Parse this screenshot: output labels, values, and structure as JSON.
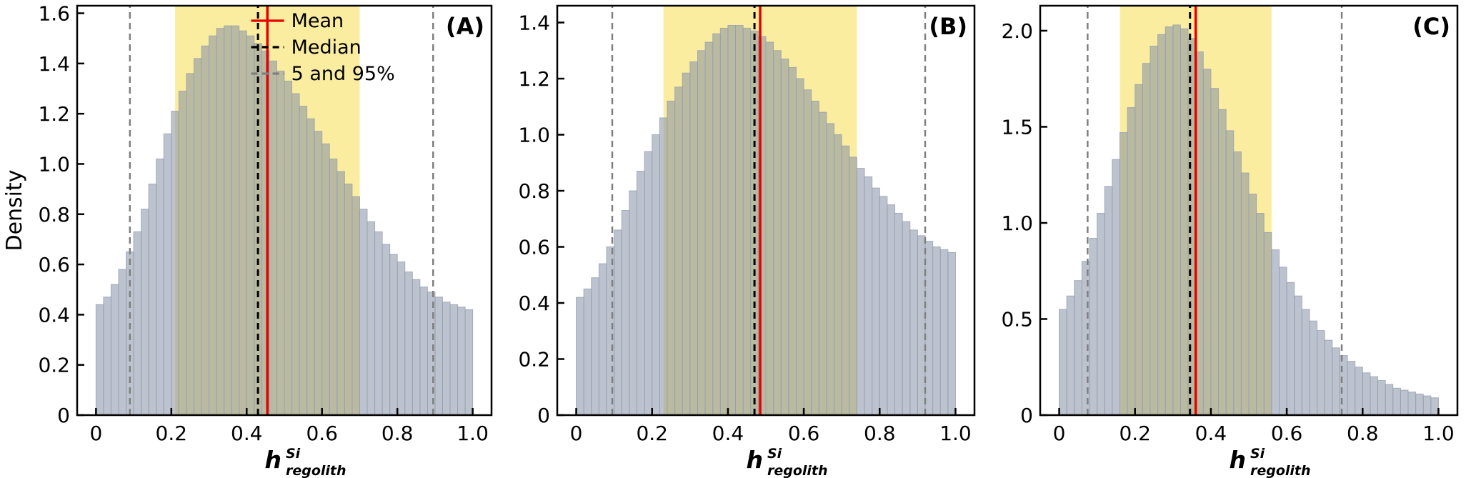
{
  "figure": {
    "background": "#ffffff",
    "ylabel": "Density",
    "xlabel": {
      "base": "h",
      "sup": "Si",
      "sub": "regolith"
    },
    "colors": {
      "bar_fill": "#7f8ca3",
      "bar_alpha": 0.52,
      "bar_edge": "#99a2b0",
      "band": "#fbeda0",
      "mean": "#e60000",
      "median": "#000000",
      "percentile": "#7f7f7f",
      "spine": "#000000"
    },
    "legend": {
      "items": [
        {
          "label": "Mean",
          "style": "solid",
          "color": "#e60000"
        },
        {
          "label": "Median",
          "style": "dashed",
          "color": "#000000"
        },
        {
          "label": "5 and 95%",
          "style": "dashed",
          "color": "#7f7f7f"
        }
      ]
    }
  },
  "chart_data": [
    {
      "type": "bar",
      "panel_label": "(A)",
      "bin_start": 0.0,
      "bin_width": 0.02,
      "values": [
        0.44,
        0.47,
        0.52,
        0.58,
        0.65,
        0.73,
        0.82,
        0.92,
        1.02,
        1.12,
        1.21,
        1.29,
        1.36,
        1.42,
        1.47,
        1.51,
        1.54,
        1.55,
        1.55,
        1.53,
        1.51,
        1.48,
        1.45,
        1.41,
        1.37,
        1.33,
        1.28,
        1.23,
        1.18,
        1.13,
        1.08,
        1.02,
        0.97,
        0.92,
        0.87,
        0.82,
        0.77,
        0.73,
        0.68,
        0.64,
        0.61,
        0.57,
        0.54,
        0.51,
        0.49,
        0.47,
        0.45,
        0.44,
        0.43,
        0.42
      ],
      "mean": 0.455,
      "median": 0.43,
      "p5": 0.09,
      "p95": 0.895,
      "band": [
        0.21,
        0.7
      ],
      "xlim": [
        -0.05,
        1.05
      ],
      "ylim": [
        0,
        1.63
      ],
      "xticks": [
        0,
        0.2,
        0.4,
        0.6,
        0.8,
        1.0
      ],
      "xtick_labels": [
        "0",
        "0.2",
        "0.4",
        "0.6",
        "0.8",
        "1.0"
      ],
      "yticks": [
        0,
        0.2,
        0.4,
        0.6,
        0.8,
        1.0,
        1.2,
        1.4,
        1.6
      ],
      "ytick_labels": [
        "0",
        "0.2",
        "0.4",
        "0.6",
        "0.8",
        "1.0",
        "1.2",
        "1.4",
        "1.6"
      ],
      "show_legend": true,
      "show_ylabel": true
    },
    {
      "type": "bar",
      "panel_label": "(B)",
      "bin_start": 0.0,
      "bin_width": 0.02,
      "values": [
        0.42,
        0.45,
        0.49,
        0.54,
        0.6,
        0.66,
        0.73,
        0.8,
        0.87,
        0.94,
        1.0,
        1.06,
        1.12,
        1.17,
        1.22,
        1.26,
        1.3,
        1.33,
        1.36,
        1.38,
        1.39,
        1.39,
        1.38,
        1.37,
        1.35,
        1.33,
        1.3,
        1.27,
        1.24,
        1.2,
        1.16,
        1.12,
        1.08,
        1.04,
        1.0,
        0.96,
        0.92,
        0.88,
        0.85,
        0.81,
        0.78,
        0.75,
        0.72,
        0.69,
        0.66,
        0.64,
        0.62,
        0.6,
        0.59,
        0.58
      ],
      "mean": 0.485,
      "median": 0.47,
      "p5": 0.095,
      "p95": 0.92,
      "band": [
        0.23,
        0.74
      ],
      "xlim": [
        -0.05,
        1.05
      ],
      "ylim": [
        0,
        1.46
      ],
      "xticks": [
        0,
        0.2,
        0.4,
        0.6,
        0.8,
        1.0
      ],
      "xtick_labels": [
        "0",
        "0.2",
        "0.4",
        "0.6",
        "0.8",
        "1.0"
      ],
      "yticks": [
        0,
        0.2,
        0.4,
        0.6,
        0.8,
        1.0,
        1.2,
        1.4
      ],
      "ytick_labels": [
        "0",
        "0.2",
        "0.4",
        "0.6",
        "0.8",
        "1.0",
        "1.2",
        "1.4"
      ],
      "show_legend": false,
      "show_ylabel": false
    },
    {
      "type": "bar",
      "panel_label": "(C)",
      "bin_start": 0.0,
      "bin_width": 0.02,
      "values": [
        0.55,
        0.62,
        0.7,
        0.8,
        0.92,
        1.05,
        1.19,
        1.33,
        1.47,
        1.6,
        1.72,
        1.83,
        1.92,
        1.98,
        2.02,
        2.03,
        2.01,
        1.96,
        1.89,
        1.8,
        1.7,
        1.59,
        1.48,
        1.37,
        1.26,
        1.15,
        1.05,
        0.95,
        0.86,
        0.77,
        0.69,
        0.62,
        0.55,
        0.49,
        0.44,
        0.39,
        0.35,
        0.31,
        0.28,
        0.25,
        0.22,
        0.2,
        0.18,
        0.16,
        0.14,
        0.13,
        0.12,
        0.11,
        0.1,
        0.09
      ],
      "mean": 0.36,
      "median": 0.345,
      "p5": 0.075,
      "p95": 0.745,
      "band": [
        0.16,
        0.56
      ],
      "xlim": [
        -0.05,
        1.05
      ],
      "ylim": [
        0,
        2.13
      ],
      "xticks": [
        0,
        0.2,
        0.4,
        0.6,
        0.8,
        1.0
      ],
      "xtick_labels": [
        "0",
        "0.2",
        "0.4",
        "0.6",
        "0.8",
        "1.0"
      ],
      "yticks": [
        0,
        0.5,
        1.0,
        1.5,
        2.0
      ],
      "ytick_labels": [
        "0",
        "0.5",
        "1.0",
        "1.5",
        "2.0"
      ],
      "show_legend": false,
      "show_ylabel": false
    }
  ]
}
